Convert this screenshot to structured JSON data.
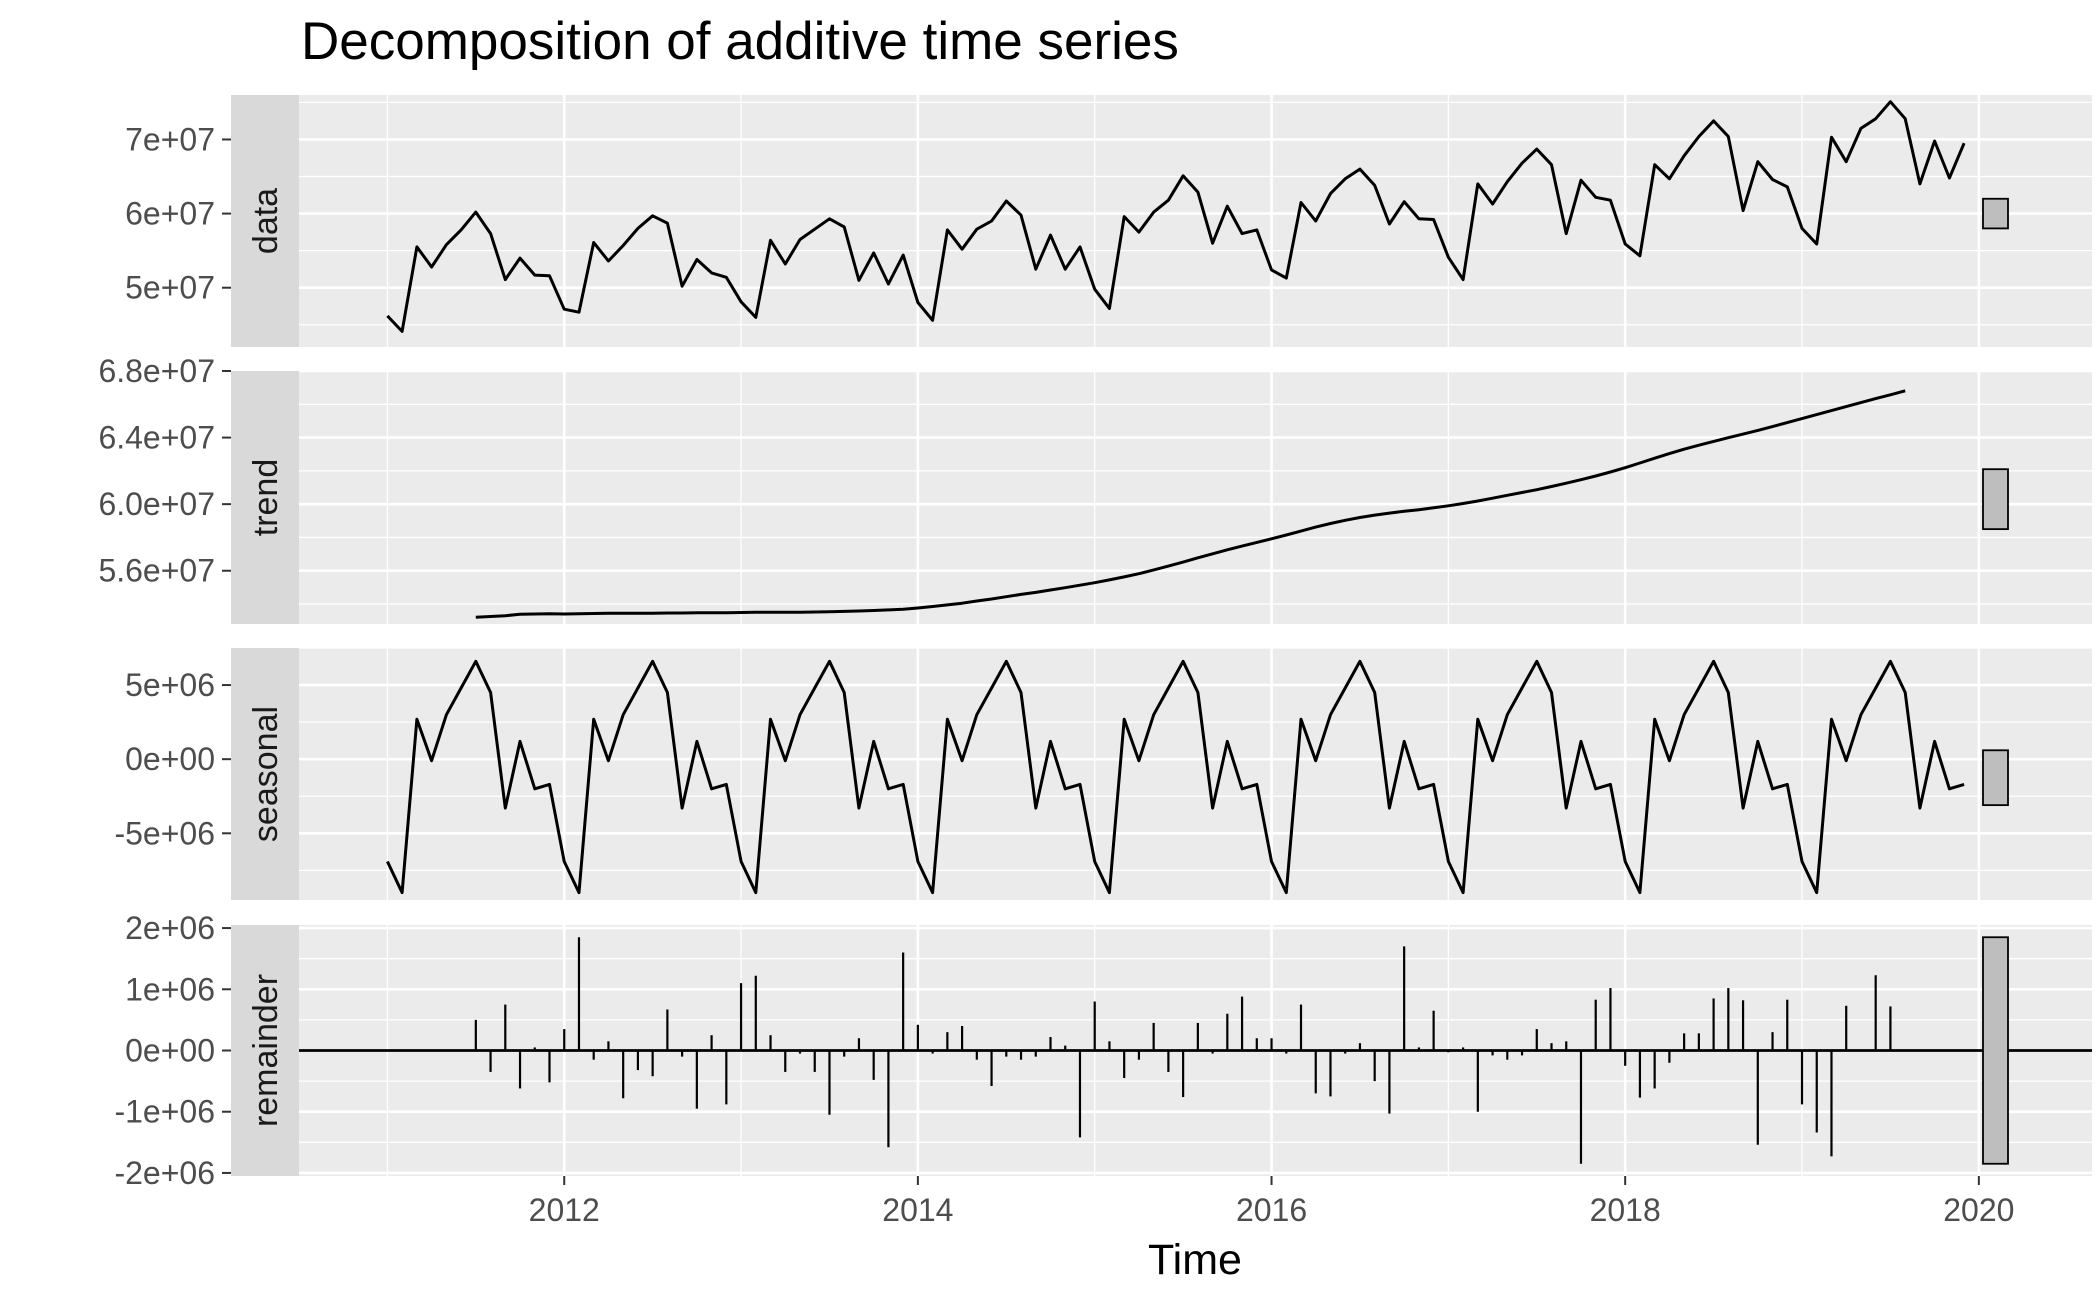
{
  "chart_data": {
    "type": "line",
    "title": "Decomposition of additive time series",
    "xlabel": "Time",
    "xlim": [
      2010.5,
      2020.64
    ],
    "x_ticks": [
      {
        "value": 2012,
        "label": "2012"
      },
      {
        "value": 2014,
        "label": "2014"
      },
      {
        "value": 2016,
        "label": "2016"
      },
      {
        "value": 2018,
        "label": "2018"
      },
      {
        "value": 2020,
        "label": "2020"
      }
    ],
    "colors": {
      "panel_bg": "#ebebeb",
      "strip_bg": "#d9d9d9",
      "grid": "#ffffff",
      "line": "#000000",
      "range_bar": "#bebebe"
    },
    "start": 2011,
    "frequency": 12,
    "panels": [
      {
        "name": "data",
        "ylim": [
          42000000,
          76000000
        ],
        "y_ticks": [
          {
            "value": 50000000,
            "label": "5e+07"
          },
          {
            "value": 60000000,
            "label": "6e+07"
          },
          {
            "value": 70000000,
            "label": "7e+07"
          }
        ],
        "range_bar": [
          58000000,
          62000000
        ],
        "values": [
          46200000,
          44100000,
          55500000,
          52800000,
          55800000,
          57800000,
          60200000,
          57300000,
          51100000,
          54000000,
          51700000,
          51600000,
          47100000,
          46700000,
          56100000,
          53600000,
          55700000,
          58000000,
          59700000,
          58700000,
          50200000,
          53800000,
          52000000,
          51400000,
          48100000,
          46000000,
          56400000,
          53200000,
          56500000,
          57900000,
          59300000,
          58200000,
          51000000,
          54700000,
          50500000,
          54400000,
          48000000,
          45600000,
          57800000,
          55200000,
          57900000,
          59000000,
          61700000,
          59800000,
          52500000,
          57100000,
          52500000,
          55500000,
          49800000,
          47200000,
          59600000,
          57500000,
          60200000,
          61800000,
          65100000,
          62900000,
          56000000,
          61000000,
          57300000,
          57800000,
          52400000,
          51300000,
          61500000,
          59000000,
          62700000,
          64700000,
          66000000,
          63800000,
          58600000,
          61600000,
          59300000,
          59200000,
          54100000,
          51100000,
          64000000,
          61300000,
          64300000,
          66800000,
          68700000,
          66600000,
          57300000,
          64500000,
          62200000,
          61800000,
          55900000,
          54300000,
          66600000,
          64700000,
          67800000,
          70400000,
          72500000,
          70400000,
          60400000,
          67000000,
          64600000,
          63600000,
          58000000,
          55900000,
          70300000,
          67000000,
          71500000,
          72800000,
          75100000,
          72800000,
          64000000,
          69800000,
          64800000,
          69500000
        ]
      },
      {
        "name": "trend",
        "ylim": [
          52800000,
          68000000
        ],
        "y_ticks": [
          {
            "value": 56000000,
            "label": "5.6e+07"
          },
          {
            "value": 60000000,
            "label": "6.0e+07"
          },
          {
            "value": 64000000,
            "label": "6.4e+07"
          },
          {
            "value": 68000000,
            "label": "6.8e+07"
          }
        ],
        "range_bar": [
          58500000,
          62100000
        ],
        "values": [
          null,
          null,
          null,
          null,
          null,
          null,
          53200000,
          53250000,
          53300000,
          53380000,
          53400000,
          53420000,
          53400000,
          53410000,
          53430000,
          53440000,
          53440000,
          53450000,
          53450000,
          53460000,
          53460000,
          53470000,
          53470000,
          53480000,
          53490000,
          53500000,
          53510000,
          53500000,
          53510000,
          53520000,
          53540000,
          53560000,
          53580000,
          53610000,
          53650000,
          53690000,
          53760000,
          53850000,
          53950000,
          54050000,
          54180000,
          54300000,
          54440000,
          54580000,
          54700000,
          54840000,
          54980000,
          55130000,
          55280000,
          55450000,
          55630000,
          55820000,
          56050000,
          56280000,
          56520000,
          56780000,
          57020000,
          57260000,
          57480000,
          57700000,
          57920000,
          58150000,
          58380000,
          58620000,
          58840000,
          59030000,
          59200000,
          59340000,
          59460000,
          59570000,
          59670000,
          59780000,
          59900000,
          60040000,
          60190000,
          60360000,
          60530000,
          60700000,
          60870000,
          61060000,
          61260000,
          61470000,
          61690000,
          61930000,
          62190000,
          62470000,
          62760000,
          63040000,
          63300000,
          63540000,
          63770000,
          63990000,
          64210000,
          64430000,
          64660000,
          64900000,
          65140000,
          65380000,
          65620000,
          65860000,
          66100000,
          66340000,
          66570000,
          66810000,
          null,
          null,
          null,
          null,
          null,
          null
        ]
      },
      {
        "name": "seasonal",
        "ylim": [
          -9500000,
          7500000
        ],
        "y_ticks": [
          {
            "value": -5000000,
            "label": "-5e+06"
          },
          {
            "value": 0,
            "label": "0e+00"
          },
          {
            "value": 5000000,
            "label": "5e+06"
          }
        ],
        "range_bar": [
          -3100000,
          600000
        ],
        "values": [
          -6900000,
          -9000000,
          2700000,
          -100000,
          3000000,
          4800000,
          6600000,
          4500000,
          -3300000,
          1200000,
          -2000000,
          -1700000,
          -6900000,
          -9000000,
          2700000,
          -100000,
          3000000,
          4800000,
          6600000,
          4500000,
          -3300000,
          1200000,
          -2000000,
          -1700000,
          -6900000,
          -9000000,
          2700000,
          -100000,
          3000000,
          4800000,
          6600000,
          4500000,
          -3300000,
          1200000,
          -2000000,
          -1700000,
          -6900000,
          -9000000,
          2700000,
          -100000,
          3000000,
          4800000,
          6600000,
          4500000,
          -3300000,
          1200000,
          -2000000,
          -1700000,
          -6900000,
          -9000000,
          2700000,
          -100000,
          3000000,
          4800000,
          6600000,
          4500000,
          -3300000,
          1200000,
          -2000000,
          -1700000,
          -6900000,
          -9000000,
          2700000,
          -100000,
          3000000,
          4800000,
          6600000,
          4500000,
          -3300000,
          1200000,
          -2000000,
          -1700000,
          -6900000,
          -9000000,
          2700000,
          -100000,
          3000000,
          4800000,
          6600000,
          4500000,
          -3300000,
          1200000,
          -2000000,
          -1700000,
          -6900000,
          -9000000,
          2700000,
          -100000,
          3000000,
          4800000,
          6600000,
          4500000,
          -3300000,
          1200000,
          -2000000,
          -1700000,
          -6900000,
          -9000000,
          2700000,
          -100000,
          3000000,
          4800000,
          6600000,
          4500000,
          -3300000,
          1200000,
          -2000000,
          -1700000
        ]
      },
      {
        "name": "remainder",
        "ylim": [
          -2050000,
          2050000
        ],
        "y_ticks": [
          {
            "value": -2000000,
            "label": "-2e+06"
          },
          {
            "value": -1000000,
            "label": "-1e+06"
          },
          {
            "value": 0,
            "label": "0e+00"
          },
          {
            "value": 1000000,
            "label": "1e+06"
          },
          {
            "value": 2000000,
            "label": "2e+06"
          }
        ],
        "range_bar": [
          -1850000,
          1850000
        ],
        "style": "bars",
        "values": [
          null,
          null,
          null,
          null,
          null,
          null,
          500000,
          -350000,
          750000,
          -620000,
          50000,
          -520000,
          350000,
          1850000,
          -150000,
          150000,
          -780000,
          -320000,
          -420000,
          670000,
          -100000,
          -950000,
          250000,
          -880000,
          1100000,
          1220000,
          250000,
          -350000,
          -50000,
          -350000,
          -1050000,
          -100000,
          200000,
          -480000,
          -1580000,
          1600000,
          420000,
          -50000,
          300000,
          400000,
          -150000,
          -580000,
          -100000,
          -150000,
          -100000,
          220000,
          80000,
          -1420000,
          800000,
          150000,
          -450000,
          -150000,
          450000,
          -350000,
          -760000,
          450000,
          -50000,
          600000,
          880000,
          200000,
          200000,
          -50000,
          750000,
          -700000,
          -750000,
          -50000,
          120000,
          -500000,
          -1030000,
          1700000,
          50000,
          650000,
          -30000,
          50000,
          -1000000,
          -80000,
          -150000,
          -80000,
          350000,
          120000,
          150000,
          -1850000,
          830000,
          1020000,
          -250000,
          -770000,
          -620000,
          -200000,
          280000,
          280000,
          850000,
          1020000,
          820000,
          -1540000,
          300000,
          830000,
          -880000,
          -1340000,
          -1730000,
          730000,
          null,
          1230000,
          720000,
          null,
          null,
          null,
          null,
          null
        ]
      }
    ]
  }
}
